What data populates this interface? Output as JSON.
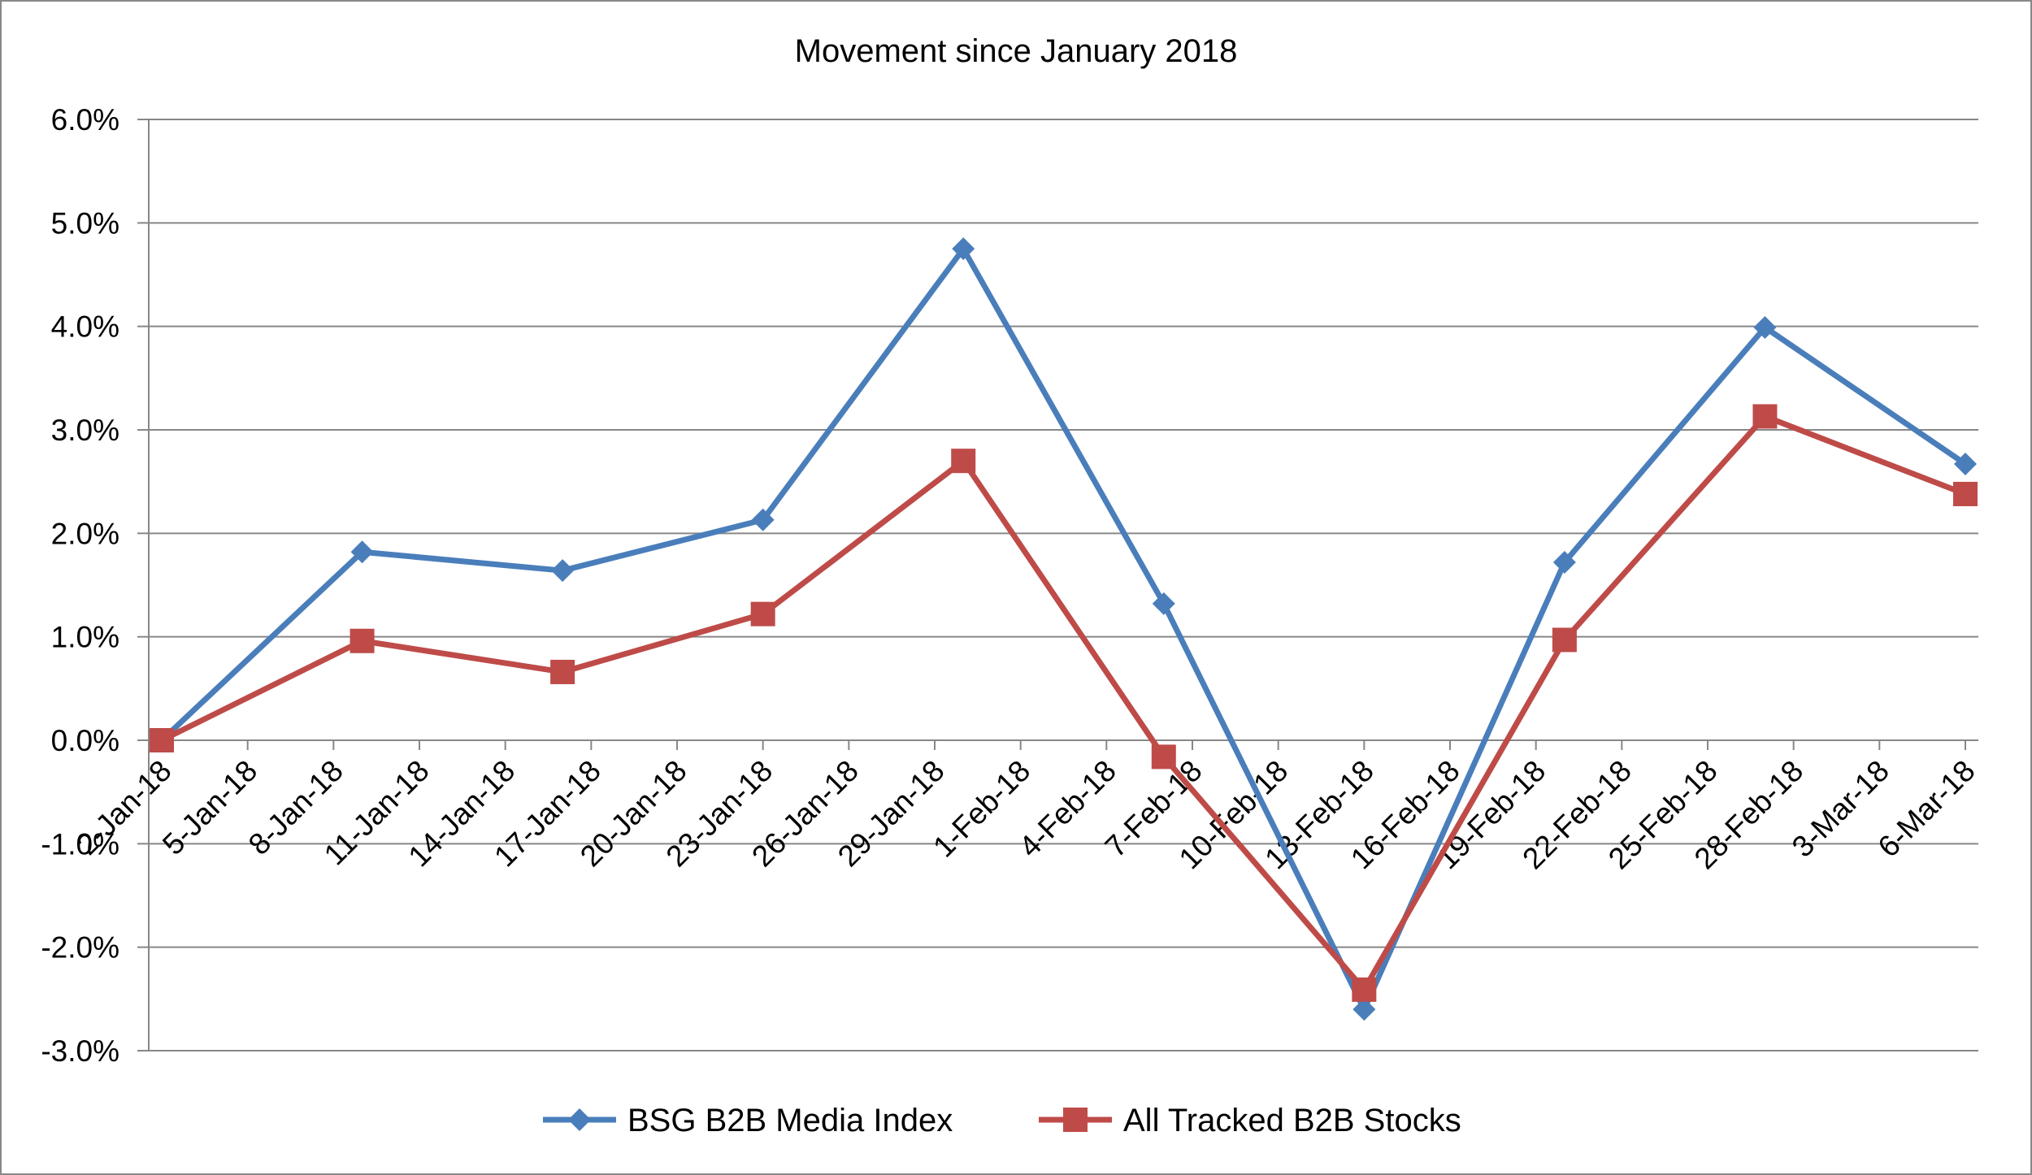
{
  "chart_data": {
    "type": "line",
    "title": "Movement since January 2018",
    "xlabel": "",
    "ylabel": "",
    "x": [
      "2-Jan-18",
      "5-Jan-18",
      "8-Jan-18",
      "11-Jan-18",
      "14-Jan-18",
      "17-Jan-18",
      "20-Jan-18",
      "23-Jan-18",
      "26-Jan-18",
      "29-Jan-18",
      "1-Feb-18",
      "4-Feb-18",
      "7-Feb-18",
      "10-Feb-18",
      "13-Feb-18",
      "16-Feb-18",
      "19-Feb-18",
      "22-Feb-18",
      "25-Feb-18",
      "28-Feb-18",
      "3-Mar-18",
      "6-Mar-18"
    ],
    "yticks": [
      "-3.0%",
      "-2.0%",
      "-1.0%",
      "0.0%",
      "1.0%",
      "2.0%",
      "3.0%",
      "4.0%",
      "5.0%",
      "6.0%"
    ],
    "ylim": [
      -3.0,
      6.0
    ],
    "grid": true,
    "legend_position": "bottom",
    "series": [
      {
        "name": "BSG B2B Media Index",
        "color": "#4a7ebb",
        "marker": "diamond",
        "points": [
          {
            "x": "2-Jan-18",
            "y": 0.0
          },
          {
            "x": "9-Jan-18",
            "y": 1.82
          },
          {
            "x": "16-Jan-18",
            "y": 1.64
          },
          {
            "x": "23-Jan-18",
            "y": 2.13
          },
          {
            "x": "30-Jan-18",
            "y": 4.75
          },
          {
            "x": "6-Feb-18",
            "y": 1.32
          },
          {
            "x": "13-Feb-18",
            "y": -2.6
          },
          {
            "x": "20-Feb-18",
            "y": 1.72
          },
          {
            "x": "27-Feb-18",
            "y": 3.99
          },
          {
            "x": "6-Mar-18",
            "y": 2.67
          }
        ]
      },
      {
        "name": "All Tracked B2B Stocks",
        "color": "#be4b48",
        "marker": "square",
        "points": [
          {
            "x": "2-Jan-18",
            "y": 0.0
          },
          {
            "x": "9-Jan-18",
            "y": 0.96
          },
          {
            "x": "16-Jan-18",
            "y": 0.66
          },
          {
            "x": "23-Jan-18",
            "y": 1.22
          },
          {
            "x": "30-Jan-18",
            "y": 2.7
          },
          {
            "x": "6-Feb-18",
            "y": -0.16
          },
          {
            "x": "13-Feb-18",
            "y": -2.41
          },
          {
            "x": "20-Feb-18",
            "y": 0.97
          },
          {
            "x": "27-Feb-18",
            "y": 3.13
          },
          {
            "x": "6-Mar-18",
            "y": 2.38
          }
        ]
      }
    ]
  }
}
